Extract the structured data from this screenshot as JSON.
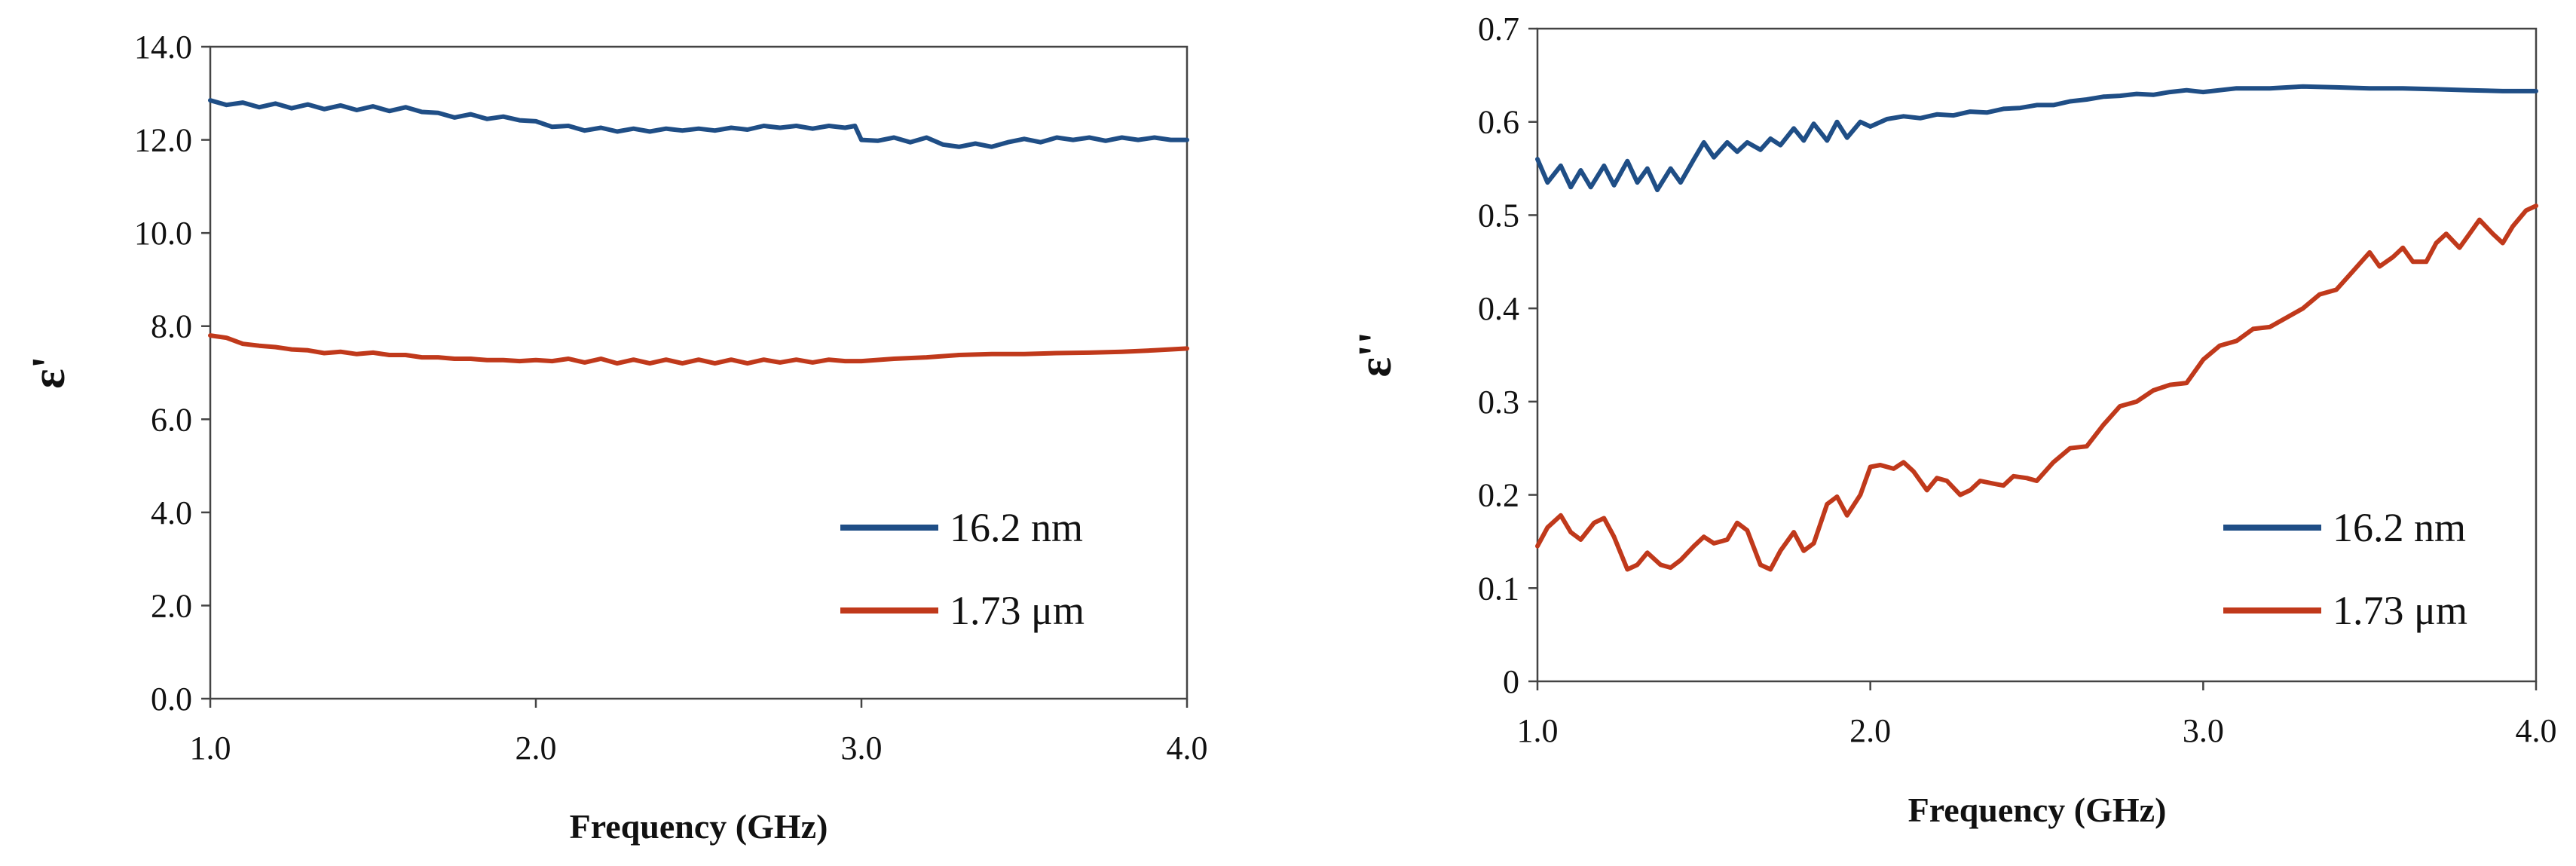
{
  "colors": {
    "series_blue": "#1f4e86",
    "series_red": "#c0391b",
    "axis": "#444444",
    "text": "#111111"
  },
  "chart_data": [
    {
      "type": "line",
      "title": "",
      "xlabel": "Frequency (GHz)",
      "ylabel": "ε'",
      "xlim": [
        1.0,
        4.0
      ],
      "ylim": [
        0.0,
        14.0
      ],
      "xticks": [
        "1.0",
        "2.0",
        "3.0",
        "4.0"
      ],
      "yticks": [
        "0.0",
        "2.0",
        "4.0",
        "6.0",
        "8.0",
        "10.0",
        "12.0",
        "14.0"
      ],
      "grid": false,
      "legend_position": "bottom-right",
      "series": [
        {
          "name": "16.2 nm",
          "color": "#1f4e86",
          "points": [
            [
              1.0,
              12.85
            ],
            [
              1.05,
              12.75
            ],
            [
              1.1,
              12.8
            ],
            [
              1.15,
              12.7
            ],
            [
              1.2,
              12.78
            ],
            [
              1.25,
              12.68
            ],
            [
              1.3,
              12.76
            ],
            [
              1.35,
              12.66
            ],
            [
              1.4,
              12.74
            ],
            [
              1.45,
              12.64
            ],
            [
              1.5,
              12.72
            ],
            [
              1.55,
              12.62
            ],
            [
              1.6,
              12.7
            ],
            [
              1.65,
              12.6
            ],
            [
              1.7,
              12.58
            ],
            [
              1.75,
              12.48
            ],
            [
              1.8,
              12.55
            ],
            [
              1.85,
              12.45
            ],
            [
              1.9,
              12.5
            ],
            [
              1.95,
              12.42
            ],
            [
              2.0,
              12.4
            ],
            [
              2.05,
              12.28
            ],
            [
              2.1,
              12.3
            ],
            [
              2.15,
              12.2
            ],
            [
              2.2,
              12.26
            ],
            [
              2.25,
              12.18
            ],
            [
              2.3,
              12.24
            ],
            [
              2.35,
              12.18
            ],
            [
              2.4,
              12.24
            ],
            [
              2.45,
              12.2
            ],
            [
              2.5,
              12.24
            ],
            [
              2.55,
              12.2
            ],
            [
              2.6,
              12.26
            ],
            [
              2.65,
              12.22
            ],
            [
              2.7,
              12.3
            ],
            [
              2.75,
              12.26
            ],
            [
              2.8,
              12.3
            ],
            [
              2.85,
              12.24
            ],
            [
              2.9,
              12.3
            ],
            [
              2.95,
              12.26
            ],
            [
              2.98,
              12.3
            ],
            [
              3.0,
              12.0
            ],
            [
              3.05,
              11.98
            ],
            [
              3.1,
              12.05
            ],
            [
              3.15,
              11.95
            ],
            [
              3.2,
              12.05
            ],
            [
              3.25,
              11.9
            ],
            [
              3.3,
              11.85
            ],
            [
              3.35,
              11.92
            ],
            [
              3.4,
              11.85
            ],
            [
              3.45,
              11.95
            ],
            [
              3.5,
              12.02
            ],
            [
              3.55,
              11.95
            ],
            [
              3.6,
              12.05
            ],
            [
              3.65,
              12.0
            ],
            [
              3.7,
              12.05
            ],
            [
              3.75,
              11.98
            ],
            [
              3.8,
              12.05
            ],
            [
              3.85,
              12.0
            ],
            [
              3.9,
              12.05
            ],
            [
              3.95,
              12.0
            ],
            [
              4.0,
              12.0
            ]
          ]
        },
        {
          "name": "1.73 μm",
          "color": "#c0391b",
          "points": [
            [
              1.0,
              7.8
            ],
            [
              1.05,
              7.75
            ],
            [
              1.1,
              7.62
            ],
            [
              1.15,
              7.58
            ],
            [
              1.2,
              7.55
            ],
            [
              1.25,
              7.5
            ],
            [
              1.3,
              7.48
            ],
            [
              1.35,
              7.42
            ],
            [
              1.4,
              7.45
            ],
            [
              1.45,
              7.4
            ],
            [
              1.5,
              7.43
            ],
            [
              1.55,
              7.38
            ],
            [
              1.6,
              7.38
            ],
            [
              1.65,
              7.33
            ],
            [
              1.7,
              7.33
            ],
            [
              1.75,
              7.3
            ],
            [
              1.8,
              7.3
            ],
            [
              1.85,
              7.27
            ],
            [
              1.9,
              7.27
            ],
            [
              1.95,
              7.25
            ],
            [
              2.0,
              7.27
            ],
            [
              2.05,
              7.25
            ],
            [
              2.1,
              7.3
            ],
            [
              2.15,
              7.22
            ],
            [
              2.2,
              7.3
            ],
            [
              2.25,
              7.2
            ],
            [
              2.3,
              7.28
            ],
            [
              2.35,
              7.2
            ],
            [
              2.4,
              7.28
            ],
            [
              2.45,
              7.2
            ],
            [
              2.5,
              7.28
            ],
            [
              2.55,
              7.2
            ],
            [
              2.6,
              7.28
            ],
            [
              2.65,
              7.2
            ],
            [
              2.7,
              7.28
            ],
            [
              2.75,
              7.22
            ],
            [
              2.8,
              7.28
            ],
            [
              2.85,
              7.22
            ],
            [
              2.9,
              7.28
            ],
            [
              2.95,
              7.25
            ],
            [
              3.0,
              7.25
            ],
            [
              3.1,
              7.3
            ],
            [
              3.2,
              7.33
            ],
            [
              3.3,
              7.38
            ],
            [
              3.4,
              7.4
            ],
            [
              3.5,
              7.4
            ],
            [
              3.6,
              7.42
            ],
            [
              3.7,
              7.43
            ],
            [
              3.8,
              7.45
            ],
            [
              3.9,
              7.48
            ],
            [
              4.0,
              7.52
            ]
          ]
        }
      ]
    },
    {
      "type": "line",
      "title": "",
      "xlabel": "Frequency (GHz)",
      "ylabel": "ε''",
      "xlim": [
        1.0,
        4.0
      ],
      "ylim": [
        0.0,
        0.7
      ],
      "xticks": [
        "1.0",
        "2.0",
        "3.0",
        "4.0"
      ],
      "yticks": [
        "0",
        "0.1",
        "0.2",
        "0.3",
        "0.4",
        "0.5",
        "0.6",
        "0.7"
      ],
      "grid": false,
      "legend_position": "bottom-right",
      "series": [
        {
          "name": "16.2 nm",
          "color": "#1f4e86",
          "points": [
            [
              1.0,
              0.56
            ],
            [
              1.03,
              0.535
            ],
            [
              1.07,
              0.553
            ],
            [
              1.1,
              0.53
            ],
            [
              1.13,
              0.548
            ],
            [
              1.16,
              0.53
            ],
            [
              1.2,
              0.553
            ],
            [
              1.23,
              0.532
            ],
            [
              1.27,
              0.558
            ],
            [
              1.3,
              0.535
            ],
            [
              1.33,
              0.55
            ],
            [
              1.36,
              0.527
            ],
            [
              1.4,
              0.55
            ],
            [
              1.43,
              0.535
            ],
            [
              1.47,
              0.56
            ],
            [
              1.5,
              0.578
            ],
            [
              1.53,
              0.562
            ],
            [
              1.57,
              0.578
            ],
            [
              1.6,
              0.568
            ],
            [
              1.63,
              0.578
            ],
            [
              1.67,
              0.57
            ],
            [
              1.7,
              0.582
            ],
            [
              1.73,
              0.575
            ],
            [
              1.77,
              0.593
            ],
            [
              1.8,
              0.58
            ],
            [
              1.83,
              0.598
            ],
            [
              1.87,
              0.58
            ],
            [
              1.9,
              0.6
            ],
            [
              1.93,
              0.583
            ],
            [
              1.97,
              0.6
            ],
            [
              2.0,
              0.595
            ],
            [
              2.05,
              0.603
            ],
            [
              2.1,
              0.606
            ],
            [
              2.15,
              0.604
            ],
            [
              2.2,
              0.608
            ],
            [
              2.25,
              0.607
            ],
            [
              2.3,
              0.611
            ],
            [
              2.35,
              0.61
            ],
            [
              2.4,
              0.614
            ],
            [
              2.45,
              0.615
            ],
            [
              2.5,
              0.618
            ],
            [
              2.55,
              0.618
            ],
            [
              2.6,
              0.622
            ],
            [
              2.65,
              0.624
            ],
            [
              2.7,
              0.627
            ],
            [
              2.75,
              0.628
            ],
            [
              2.8,
              0.63
            ],
            [
              2.85,
              0.629
            ],
            [
              2.9,
              0.632
            ],
            [
              2.95,
              0.634
            ],
            [
              3.0,
              0.632
            ],
            [
              3.1,
              0.636
            ],
            [
              3.2,
              0.636
            ],
            [
              3.3,
              0.638
            ],
            [
              3.4,
              0.637
            ],
            [
              3.5,
              0.636
            ],
            [
              3.6,
              0.636
            ],
            [
              3.7,
              0.635
            ],
            [
              3.8,
              0.634
            ],
            [
              3.9,
              0.633
            ],
            [
              4.0,
              0.633
            ]
          ]
        },
        {
          "name": "1.73 μm",
          "color": "#c0391b",
          "points": [
            [
              1.0,
              0.145
            ],
            [
              1.03,
              0.165
            ],
            [
              1.07,
              0.178
            ],
            [
              1.1,
              0.16
            ],
            [
              1.13,
              0.152
            ],
            [
              1.17,
              0.17
            ],
            [
              1.2,
              0.175
            ],
            [
              1.23,
              0.155
            ],
            [
              1.27,
              0.12
            ],
            [
              1.3,
              0.125
            ],
            [
              1.33,
              0.138
            ],
            [
              1.37,
              0.125
            ],
            [
              1.4,
              0.122
            ],
            [
              1.43,
              0.13
            ],
            [
              1.47,
              0.145
            ],
            [
              1.5,
              0.155
            ],
            [
              1.53,
              0.148
            ],
            [
              1.57,
              0.152
            ],
            [
              1.6,
              0.17
            ],
            [
              1.63,
              0.162
            ],
            [
              1.67,
              0.125
            ],
            [
              1.7,
              0.12
            ],
            [
              1.73,
              0.14
            ],
            [
              1.77,
              0.16
            ],
            [
              1.8,
              0.14
            ],
            [
              1.83,
              0.148
            ],
            [
              1.87,
              0.19
            ],
            [
              1.9,
              0.198
            ],
            [
              1.93,
              0.178
            ],
            [
              1.97,
              0.2
            ],
            [
              2.0,
              0.23
            ],
            [
              2.03,
              0.232
            ],
            [
              2.07,
              0.228
            ],
            [
              2.1,
              0.235
            ],
            [
              2.13,
              0.225
            ],
            [
              2.17,
              0.205
            ],
            [
              2.2,
              0.218
            ],
            [
              2.23,
              0.215
            ],
            [
              2.27,
              0.2
            ],
            [
              2.3,
              0.205
            ],
            [
              2.33,
              0.215
            ],
            [
              2.37,
              0.212
            ],
            [
              2.4,
              0.21
            ],
            [
              2.43,
              0.22
            ],
            [
              2.47,
              0.218
            ],
            [
              2.5,
              0.215
            ],
            [
              2.55,
              0.235
            ],
            [
              2.6,
              0.25
            ],
            [
              2.65,
              0.252
            ],
            [
              2.7,
              0.275
            ],
            [
              2.75,
              0.295
            ],
            [
              2.8,
              0.3
            ],
            [
              2.85,
              0.312
            ],
            [
              2.9,
              0.318
            ],
            [
              2.95,
              0.32
            ],
            [
              3.0,
              0.345
            ],
            [
              3.05,
              0.36
            ],
            [
              3.1,
              0.365
            ],
            [
              3.15,
              0.378
            ],
            [
              3.2,
              0.38
            ],
            [
              3.25,
              0.39
            ],
            [
              3.3,
              0.4
            ],
            [
              3.35,
              0.415
            ],
            [
              3.4,
              0.42
            ],
            [
              3.45,
              0.44
            ],
            [
              3.5,
              0.46
            ],
            [
              3.53,
              0.445
            ],
            [
              3.57,
              0.455
            ],
            [
              3.6,
              0.465
            ],
            [
              3.63,
              0.45
            ],
            [
              3.67,
              0.45
            ],
            [
              3.7,
              0.47
            ],
            [
              3.73,
              0.48
            ],
            [
              3.77,
              0.465
            ],
            [
              3.8,
              0.48
            ],
            [
              3.83,
              0.495
            ],
            [
              3.87,
              0.48
            ],
            [
              3.9,
              0.47
            ],
            [
              3.93,
              0.488
            ],
            [
              3.97,
              0.505
            ],
            [
              4.0,
              0.51
            ]
          ]
        }
      ]
    }
  ]
}
